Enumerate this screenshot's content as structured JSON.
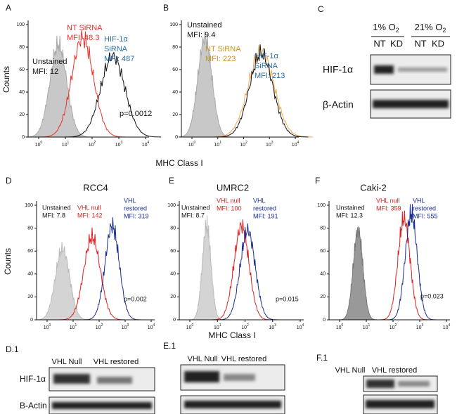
{
  "figure": {
    "axis_labels": {
      "counts_top": "Counts",
      "mhc_top": "MHC Class I",
      "counts_bottom": "Counts",
      "mhc_bottom": "MHC Class I"
    },
    "histograms": [
      {
        "label": "A",
        "y_ticks": [
          0,
          20,
          40,
          60,
          80,
          100
        ],
        "x_ticks": [
          {
            "base": "10",
            "exp": "0"
          },
          {
            "base": "10",
            "exp": "1"
          },
          {
            "base": "10",
            "exp": "2"
          },
          {
            "base": "10",
            "exp": "3"
          },
          {
            "base": "10",
            "exp": "4"
          }
        ],
        "annotations": [
          {
            "lines": [
              "NT SiRNA",
              "MFI: 48.3"
            ],
            "color": "#e8312a"
          },
          {
            "lines": [
              "HIF-1α",
              "SiRNA",
              "MFI: 487"
            ],
            "color": "#2a6ea6"
          },
          {
            "lines": [
              "Unstained",
              "MFI: 12"
            ],
            "color": "#111111"
          }
        ],
        "p_value": "p=0.0012"
      },
      {
        "label": "B",
        "y_ticks": [
          0,
          20,
          40,
          60,
          80,
          100
        ],
        "x_ticks": [
          {
            "base": "10",
            "exp": "0"
          },
          {
            "base": "10",
            "exp": "1"
          },
          {
            "base": "10",
            "exp": "2"
          },
          {
            "base": "10",
            "exp": "3"
          },
          {
            "base": "10",
            "exp": "4"
          }
        ],
        "annotations": [
          {
            "lines": [
              "Unstained",
              "MFI: 9.4"
            ],
            "color": "#111111"
          },
          {
            "lines": [
              "NT SiRNA",
              "MFI: 223"
            ],
            "color": "#c8961e"
          },
          {
            "lines": [
              "HIF-1α",
              "SiRNA",
              "MFI: 213"
            ],
            "color": "#2a6ea6"
          }
        ]
      },
      {
        "label": "D",
        "title": "RCC4",
        "y_ticks": [
          0,
          20,
          40,
          60,
          80,
          100
        ],
        "x_ticks": [
          {
            "base": "10",
            "exp": "0"
          },
          {
            "base": "10",
            "exp": "1"
          },
          {
            "base": "10",
            "exp": "2"
          },
          {
            "base": "10",
            "exp": "3"
          },
          {
            "base": "10",
            "exp": "4"
          }
        ],
        "annotations": [
          {
            "lines": [
              "Unstained",
              "MFI: 7.8"
            ],
            "color": "#111111"
          },
          {
            "lines": [
              "VHL null",
              "MFI: 142"
            ],
            "color": "#e02020"
          },
          {
            "lines": [
              "VHL",
              "restored",
              "MFI: 319"
            ],
            "color": "#1a2f8f"
          }
        ],
        "p_value": "p=0.002"
      },
      {
        "label": "E",
        "title": "UMRC2",
        "y_ticks": [
          0,
          20,
          40,
          60,
          80,
          100
        ],
        "x_ticks": [
          {
            "base": "10",
            "exp": "0"
          },
          {
            "base": "10",
            "exp": "1"
          },
          {
            "base": "10",
            "exp": "2"
          },
          {
            "base": "10",
            "exp": "3"
          },
          {
            "base": "10",
            "exp": "4"
          }
        ],
        "annotations": [
          {
            "lines": [
              "Unstained",
              "MFI: 8.7"
            ],
            "color": "#111111"
          },
          {
            "lines": [
              "VHL null",
              "MFI: 100"
            ],
            "color": "#e02020"
          },
          {
            "lines": [
              "VHL",
              "restored",
              "MFI: 191"
            ],
            "color": "#1a2f8f"
          }
        ],
        "p_value": "p=0.015"
      },
      {
        "label": "F",
        "title": "Caki-2",
        "y_ticks": [
          0,
          20,
          40,
          60,
          80,
          100
        ],
        "x_ticks": [
          {
            "base": "10",
            "exp": "0"
          },
          {
            "base": "10",
            "exp": "1"
          },
          {
            "base": "10",
            "exp": "2"
          },
          {
            "base": "10",
            "exp": "3"
          },
          {
            "base": "10",
            "exp": "4"
          }
        ],
        "annotations": [
          {
            "lines": [
              "Unstained",
              "MFI: 12.3"
            ],
            "color": "#111111"
          },
          {
            "lines": [
              "VHL null",
              "MFI: 359"
            ],
            "color": "#e02020"
          },
          {
            "lines": [
              "VHL",
              "restored",
              "MFI: 555"
            ],
            "color": "#1a2f8f"
          }
        ],
        "p_value": "p=0.023"
      }
    ],
    "blot_c": {
      "label": "C",
      "conditions": [
        {
          "text": "1% O",
          "sub": "2"
        },
        {
          "text": "21% O",
          "sub": "2"
        }
      ],
      "lanes": [
        "NT",
        "KD",
        "NT",
        "KD"
      ],
      "rows": [
        "HIF-1α",
        "β-Actin"
      ]
    },
    "blot_d1": {
      "label": "D.1",
      "lanes": [
        "VHL Null",
        "VHL restored"
      ],
      "rows": [
        "HIF-1α",
        "B-Actin"
      ]
    },
    "blot_e1": {
      "label": "E.1",
      "lanes": [
        "VHL Null",
        "VHL restored"
      ]
    },
    "blot_f1": {
      "label": "F.1",
      "lanes": [
        "VHL Null",
        "VHL restored"
      ]
    }
  }
}
